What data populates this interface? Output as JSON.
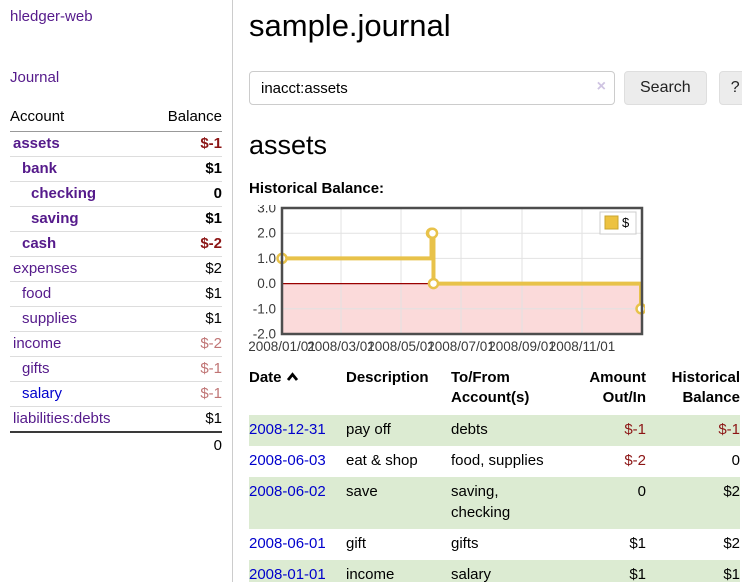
{
  "app": {
    "brand": "hledger-web"
  },
  "sidebar": {
    "nav_journal": "Journal",
    "accounts_table": {
      "headers": {
        "account": "Account",
        "balance": "Balance"
      },
      "rows": [
        {
          "name": "assets",
          "depth": 1,
          "balance": "$-1",
          "bold": true,
          "neg": "strong"
        },
        {
          "name": "bank",
          "depth": 2,
          "balance": "$1",
          "bold": true
        },
        {
          "name": "checking",
          "depth": 3,
          "balance": "0",
          "bold": true
        },
        {
          "name": "saving",
          "depth": 3,
          "balance": "$1",
          "bold": true
        },
        {
          "name": "cash",
          "depth": 2,
          "balance": "$-2",
          "bold": true,
          "neg": "strong"
        },
        {
          "name": "expenses",
          "depth": 1,
          "balance": "$2"
        },
        {
          "name": "food",
          "depth": 2,
          "balance": "$1"
        },
        {
          "name": "supplies",
          "depth": 2,
          "balance": "$1"
        },
        {
          "name": "income",
          "depth": 1,
          "balance": "$-2",
          "neg": "soft"
        },
        {
          "name": "gifts",
          "depth": 2,
          "balance": "$-1",
          "neg": "soft"
        },
        {
          "name": "salary",
          "depth": 2,
          "balance": "$-1",
          "neg": "soft",
          "blue": true
        },
        {
          "name": "liabilities:debts",
          "depth": 1,
          "balance": "$1"
        }
      ],
      "total": "0"
    }
  },
  "main": {
    "title": "sample.journal",
    "search": {
      "value": "inacct:assets",
      "clear_icon": "×",
      "button": "Search",
      "help": "?"
    },
    "account_heading": "assets",
    "chart_label": "Historical Balance:"
  },
  "chart_data": {
    "type": "line",
    "step": true,
    "title": "Historical Balance",
    "legend": [
      {
        "label": "$",
        "color": "#edc240"
      }
    ],
    "ylim": [
      -2,
      3
    ],
    "y_ticks": [
      3.0,
      2.0,
      1.0,
      0.0,
      -1.0,
      -2.0
    ],
    "x_range": [
      "2008-01-01",
      "2009-01-01"
    ],
    "x_ticks": [
      "2008-01-01",
      "2008-03-01",
      "2008-05-01",
      "2008-07-01",
      "2008-09-01",
      "2008-11-01"
    ],
    "x_tick_labels": [
      "2008/01/01",
      "2008/03/01",
      "2008/05/01",
      "2008/07/01",
      "2008/09/01",
      "2008/11/01"
    ],
    "points": [
      {
        "date": "2008-01-01",
        "value": 1
      },
      {
        "date": "2008-06-01",
        "value": 2
      },
      {
        "date": "2008-06-02",
        "value": 2
      },
      {
        "date": "2008-06-03",
        "value": 0
      },
      {
        "date": "2008-12-31",
        "value": -1
      }
    ],
    "colors": {
      "line": "#e8c24a",
      "marker_fill": "#ffffff",
      "negative_fill": "#fbdada",
      "zero_line": "#990000",
      "grid": "#e2e2e2",
      "border": "#4d4d4d",
      "tick_text": "#3a3a3a",
      "legend_border": "#cccccc"
    }
  },
  "transactions": {
    "headers": {
      "date": "Date",
      "description": "Description",
      "accounts": "To/From Account(s)",
      "amount": "Amount Out/In",
      "balance": "Historical Balance"
    },
    "rows": [
      {
        "date": "2008-12-31",
        "description": "pay off",
        "accounts": "debts",
        "amount": "$-1",
        "balance": "$-1",
        "amount_neg": true,
        "balance_neg": true
      },
      {
        "date": "2008-06-03",
        "description": "eat & shop",
        "accounts": "food, supplies",
        "amount": "$-2",
        "balance": "0",
        "amount_neg": true
      },
      {
        "date": "2008-06-02",
        "description": "save",
        "accounts": "saving, checking",
        "amount": "0",
        "balance": "$2"
      },
      {
        "date": "2008-06-01",
        "description": "gift",
        "accounts": "gifts",
        "amount": "$1",
        "balance": "$2"
      },
      {
        "date": "2008-01-01",
        "description": "income",
        "accounts": "salary",
        "amount": "$1",
        "balance": "$1"
      }
    ]
  }
}
